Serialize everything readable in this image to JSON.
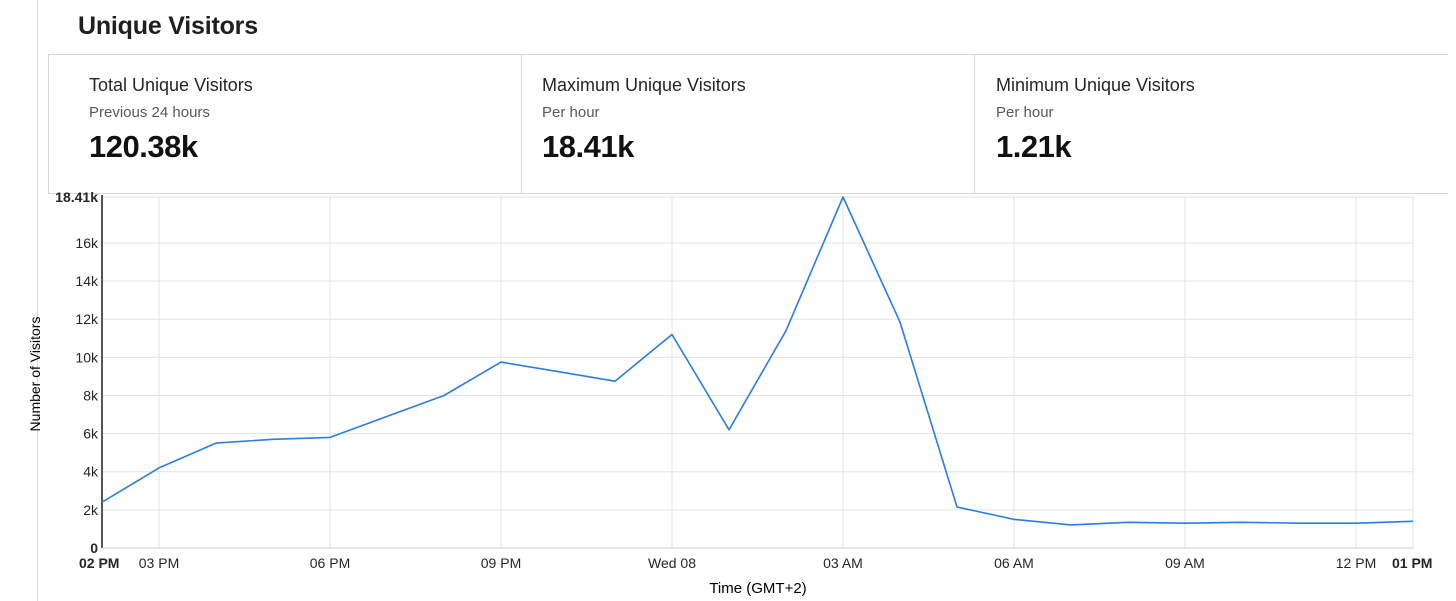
{
  "header": {
    "title": "Unique Visitors"
  },
  "stats": [
    {
      "label": "Total Unique Visitors",
      "sublabel": "Previous 24 hours",
      "value": "120.38k"
    },
    {
      "label": "Maximum Unique Visitors",
      "sublabel": "Per hour",
      "value": "18.41k"
    },
    {
      "label": "Minimum Unique Visitors",
      "sublabel": "Per hour",
      "value": "1.21k"
    }
  ],
  "colors": {
    "line": "#2b7de1",
    "grid": "#e3e3e3",
    "axis": "#1f1f1f",
    "text": "#262626"
  },
  "chart_data": {
    "type": "line",
    "xlabel": "Time (GMT+2)",
    "ylabel": "Number of Visitors",
    "ylim": [
      0,
      18410
    ],
    "y_ticks": [
      {
        "value": 0,
        "label": "0",
        "bold": true
      },
      {
        "value": 2000,
        "label": "2k"
      },
      {
        "value": 4000,
        "label": "4k"
      },
      {
        "value": 6000,
        "label": "6k"
      },
      {
        "value": 8000,
        "label": "8k"
      },
      {
        "value": 10000,
        "label": "10k"
      },
      {
        "value": 12000,
        "label": "12k"
      },
      {
        "value": 14000,
        "label": "14k"
      },
      {
        "value": 16000,
        "label": "16k"
      },
      {
        "value": 18410,
        "label": "18.41k",
        "bold": true
      }
    ],
    "x_hours_span": 23,
    "x_ticks": [
      {
        "hour": 0,
        "label": "02 PM",
        "bold": true
      },
      {
        "hour": 1,
        "label": "03 PM"
      },
      {
        "hour": 4,
        "label": "06 PM"
      },
      {
        "hour": 7,
        "label": "09 PM"
      },
      {
        "hour": 10,
        "label": "Wed 08"
      },
      {
        "hour": 13,
        "label": "03 AM"
      },
      {
        "hour": 16,
        "label": "06 AM"
      },
      {
        "hour": 19,
        "label": "09 AM"
      },
      {
        "hour": 22,
        "label": "12 PM"
      },
      {
        "hour": 23,
        "label": "01 PM",
        "bold": true
      }
    ],
    "series": [
      {
        "hours": [
          0,
          1,
          2,
          3,
          4,
          5,
          6,
          7,
          8,
          9,
          10,
          11,
          12,
          13,
          14,
          15,
          16,
          17,
          18,
          19,
          20,
          21,
          22,
          23
        ],
        "values": [
          2400,
          4200,
          5500,
          5700,
          5800,
          6900,
          8000,
          9750,
          9250,
          8750,
          11200,
          6200,
          11400,
          18410,
          11850,
          2150,
          1500,
          1210,
          1350,
          1300,
          1350,
          1300,
          1300,
          1400
        ]
      }
    ]
  }
}
